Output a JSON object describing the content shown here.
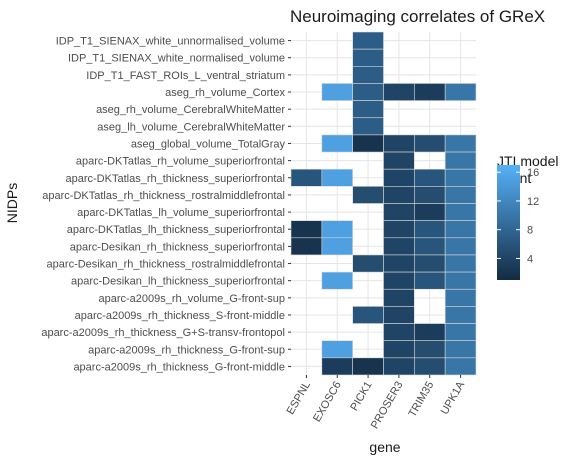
{
  "chart_data": {
    "type": "heatmap",
    "title": "Neuroimaging correlates of GReX",
    "xlabel": "gene",
    "ylabel": "NIDPs",
    "x_categories": [
      "ESPNL",
      "EXOSC6",
      "PICK1",
      "PROSER3",
      "TRIM35",
      "UPK1A"
    ],
    "y_categories": [
      "IDP_T1_SIENAX_white_unnormalised_volume",
      "IDP_T1_SIENAX_white_normalised_volume",
      "IDP_T1_FAST_ROIs_L_ventral_striatum",
      "aseg_rh_volume_Cortex",
      "aseg_rh_volume_CerebralWhiteMatter",
      "aseg_lh_volume_CerebralWhiteMatter",
      "aseg_global_volume_TotalGray",
      "aparc-DKTatlas_rh_volume_superiorfrontal",
      "aparc-DKTatlas_rh_thickness_superiorfrontal",
      "aparc-DKTatlas_rh_thickness_rostralmiddlefrontal",
      "aparc-DKTatlas_lh_volume_superiorfrontal",
      "aparc-DKTatlas_lh_thickness_superiorfrontal",
      "aparc-Desikan_rh_thickness_superiorfrontal",
      "aparc-Desikan_rh_thickness_rostralmiddlefrontal",
      "aparc-Desikan_lh_thickness_superiorfrontal",
      "aparc-a2009s_rh_volume_G-front-sup",
      "aparc-a2009s_rh_thickness_S-front-middle",
      "aparc-a2009s_rh_thickness_G+S-transv-frontopol",
      "aparc-a2009s_rh_thickness_G-front-sup",
      "aparc-a2009s_rh_thickness_G-front-middle"
    ],
    "values": [
      [
        null,
        null,
        7,
        null,
        null,
        null
      ],
      [
        null,
        null,
        7,
        null,
        null,
        null
      ],
      [
        null,
        null,
        7,
        null,
        null,
        null
      ],
      [
        null,
        15,
        7,
        4,
        3,
        10
      ],
      [
        null,
        null,
        7,
        null,
        null,
        null
      ],
      [
        null,
        null,
        7,
        null,
        null,
        null
      ],
      [
        null,
        15,
        2,
        4,
        5,
        10
      ],
      [
        null,
        null,
        null,
        4,
        null,
        10
      ],
      [
        6,
        15,
        null,
        4,
        6,
        10
      ],
      [
        null,
        null,
        5,
        4,
        5,
        10
      ],
      [
        null,
        null,
        null,
        4,
        3,
        10
      ],
      [
        2,
        15,
        null,
        4,
        6,
        10
      ],
      [
        2,
        15,
        null,
        4,
        6,
        10
      ],
      [
        null,
        null,
        5,
        4,
        5,
        10
      ],
      [
        null,
        15,
        null,
        4,
        6,
        10
      ],
      [
        null,
        null,
        null,
        4,
        null,
        10
      ],
      [
        null,
        null,
        6,
        4,
        null,
        10
      ],
      [
        null,
        null,
        null,
        4,
        3,
        10
      ],
      [
        null,
        15,
        null,
        4,
        5,
        10
      ],
      [
        null,
        3,
        2,
        4,
        5,
        10
      ]
    ],
    "color_range": [
      1,
      17
    ],
    "color_low": "#132b43",
    "color_high": "#56b1f7",
    "legend": {
      "title_line1": "JTI model",
      "title_line2": "count",
      "ticks": [
        4,
        8,
        12,
        16
      ],
      "position": "right"
    },
    "grid": true,
    "panel_background": "#ffffff",
    "grid_color": "#e5e5e5"
  }
}
